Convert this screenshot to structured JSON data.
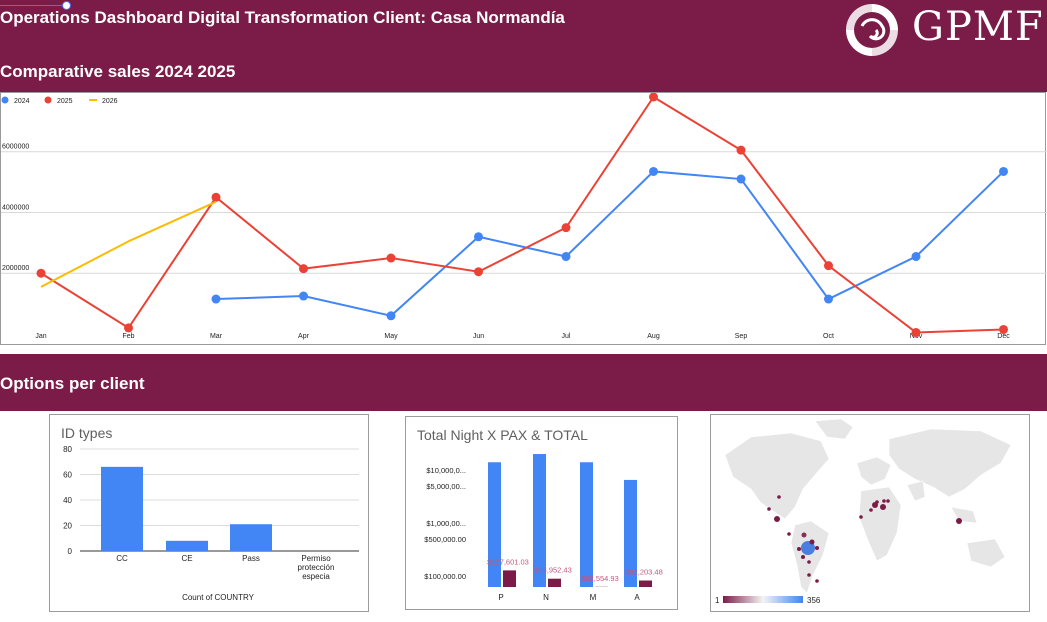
{
  "header": {
    "title": "Operations Dashboard Digital Transformation Client: Casa Normandía",
    "logo_text": "GPMF",
    "brand_color": "#7a1c47"
  },
  "sections": {
    "sales_title": "Comparative sales 2024 2025",
    "options_title": "Options per client"
  },
  "chart_data": [
    {
      "type": "line",
      "categories": [
        "Jan",
        "Feb",
        "Mar",
        "Apr",
        "May",
        "Jun",
        "Jul",
        "Aug",
        "Sep",
        "Oct",
        "Nov",
        "Dec"
      ],
      "y_ticks": [
        "2000000",
        "4000000",
        "6000000"
      ],
      "ylim": [
        0,
        7800000
      ],
      "grid": true,
      "legend_position": "top-left",
      "series": [
        {
          "name": "2024",
          "color": "#4285f4",
          "values": [
            null,
            null,
            1150000,
            1250000,
            600000,
            3200000,
            2550000,
            5350000,
            5100000,
            1150000,
            2550000,
            5350000
          ]
        },
        {
          "name": "2025",
          "color": "#ea4335",
          "values": [
            2000000,
            200000,
            4500000,
            2150000,
            2500000,
            2050000,
            3500000,
            7800000,
            6050000,
            2250000,
            50000,
            150000
          ]
        },
        {
          "name": "2026",
          "color": "#fbbc04",
          "values": [
            1550000,
            3050000,
            4350000,
            null,
            null,
            null,
            null,
            null,
            null,
            null,
            null,
            null
          ]
        }
      ]
    },
    {
      "type": "bar",
      "title": "ID types",
      "categories": [
        "CC",
        "CE",
        "Pass",
        "Permiso protección especia"
      ],
      "values": [
        66,
        8,
        21,
        0
      ],
      "xlabel": "Count of COUNTRY",
      "y_ticks": [
        "0",
        "20",
        "40",
        "60",
        "80"
      ],
      "ylim": [
        0,
        80
      ],
      "color": "#4285f4"
    },
    {
      "type": "bar",
      "title": "Total Night X PAX & TOTAL",
      "categories": [
        "P",
        "N",
        "M",
        "A"
      ],
      "y_ticks": [
        "$100,000.00",
        "$500,000.00",
        "$1,000,00...",
        "$5,000,00...",
        "$10,000,0..."
      ],
      "series": [
        {
          "color": "#4285f4",
          "values": [
            14000000,
            20000000,
            14000000,
            6500000
          ]
        },
        {
          "color": "#7a1c47",
          "values": [
            127601.03,
            88952.43,
            62554.93,
            82203.48
          ],
          "labels": [
            "$127,601.03",
            "$88,952.43",
            "$62,554.93",
            "$82,203.48"
          ]
        }
      ]
    }
  ],
  "map": {
    "legend_min": "1",
    "legend_max": "356",
    "low_color": "#7a1c47",
    "high_color": "#4285f4"
  }
}
